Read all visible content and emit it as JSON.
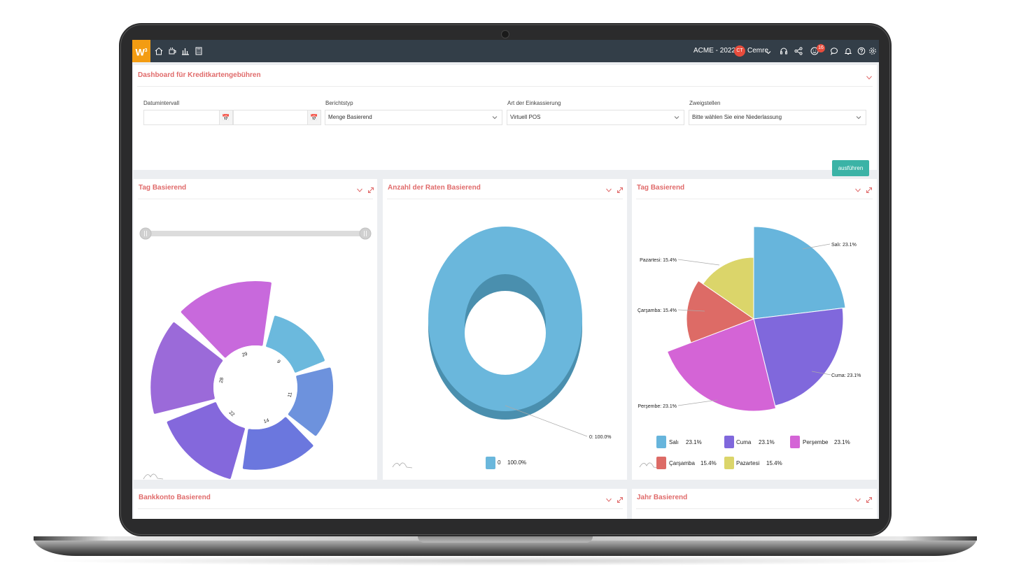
{
  "topbar": {
    "logo": "W",
    "logo_sup": "3",
    "company": "ACME - 2022",
    "avatar_initials": "CT",
    "user": "Cemre",
    "notification_count": "16"
  },
  "filter_panel": {
    "title": "Dashboard für Kreditkartengebühren",
    "date_label": "Datumintervall",
    "date_from": "",
    "date_to": "",
    "report_type_label": "Berichtstyp",
    "report_type_value": "Menge Basierend",
    "collection_label": "Art der Einkassierung",
    "collection_value": "Virtuell POS",
    "branch_label": "Zweigstellen",
    "branch_value": "Bitte wählen Sie eine Niederlassung",
    "run_button": "ausführen"
  },
  "panel_day_polar": {
    "title": "Tag Basierend"
  },
  "panel_installments": {
    "title": "Anzahl der Raten Basierend"
  },
  "panel_day_pie": {
    "title": "Tag Basierend"
  },
  "panel_bank": {
    "title": "Bankkonto Basierend"
  },
  "panel_year": {
    "title": "Jahr Basierend"
  },
  "chart_data": [
    {
      "type": "pie",
      "variant": "polar-area",
      "categories": [
        "29",
        "9",
        "11",
        "14",
        "22",
        "28"
      ],
      "values": [
        29,
        9,
        11,
        14,
        22,
        28
      ],
      "colors": [
        "#c869dc",
        "#6bb9dd",
        "#6d92dd",
        "#6b77de",
        "#8468dc",
        "#9b6ad9"
      ]
    },
    {
      "type": "pie",
      "variant": "donut-3d",
      "categories": [
        "0"
      ],
      "values": [
        100.0
      ],
      "data_labels": [
        "0: 100.0%"
      ],
      "legend": [
        {
          "name": "0",
          "value": "100.0%"
        }
      ],
      "colors": [
        "#6ab7dc"
      ]
    },
    {
      "type": "pie",
      "variant": "variable-radius",
      "categories": [
        "Salı",
        "Cuma",
        "Perşembe",
        "Çarşamba",
        "Pazartesi"
      ],
      "values": [
        23.1,
        23.1,
        23.1,
        15.4,
        15.4
      ],
      "data_labels": [
        "Salı: 23.1%",
        "Cuma: 23.1%",
        "Perşembe: 23.1%",
        "Çarşamba: 15.4%",
        "Pazartesi: 15.4%"
      ],
      "legend": [
        {
          "name": "Salı",
          "value": "23.1%"
        },
        {
          "name": "Cuma",
          "value": "23.1%"
        },
        {
          "name": "Perşembe",
          "value": "23.1%"
        },
        {
          "name": "Çarşamba",
          "value": "15.4%"
        },
        {
          "name": "Pazartesi",
          "value": "15.4%"
        }
      ],
      "colors": [
        "#67b5dc",
        "#8068dc",
        "#d464d6",
        "#dd6b66",
        "#dbd56a"
      ]
    }
  ]
}
